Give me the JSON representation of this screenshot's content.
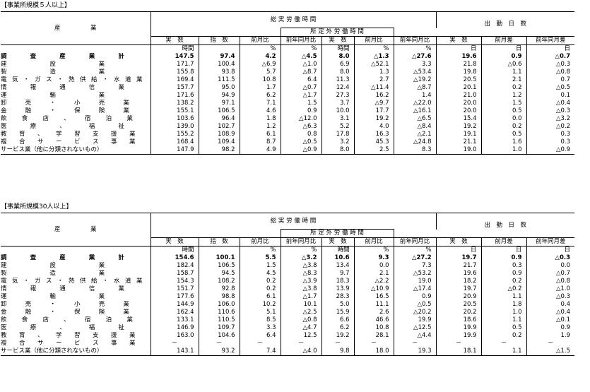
{
  "sections": [
    {
      "caption": "【事業所規模５人以上】",
      "header": {
        "industry": "産　　　　　業",
        "total_hours": "総 実 労 働 時 間",
        "overtime": "所 定 外 労 働 時 間",
        "days": "出　勤　日　数",
        "sub": [
          "実　数",
          "指　数",
          "前月比",
          "前年同月比",
          "実　数",
          "前月比",
          "前年同月比",
          "実　数",
          "前月差",
          "前年同月差"
        ],
        "units": [
          "時間",
          "",
          "%",
          "%",
          "時間",
          "%",
          "%",
          "日",
          "日",
          "日"
        ]
      },
      "rows": [
        {
          "label": "調査産業計",
          "bold": true,
          "values": [
            "147.5",
            "97.4",
            "4.2",
            "△4.5",
            "8.0",
            "△1.3",
            "△27.6",
            "19.6",
            "0.9",
            "△0.7"
          ]
        },
        {
          "label": "建設業",
          "values": [
            "171.7",
            "100.4",
            "△6.9",
            "△1.0",
            "6.9",
            "△52.1",
            "3.3",
            "21.8",
            "△0.6",
            "△0.3"
          ]
        },
        {
          "label": "製造業",
          "values": [
            "155.8",
            "93.8",
            "5.7",
            "△8.7",
            "8.0",
            "1.3",
            "△53.4",
            "19.8",
            "1.1",
            "△0.8"
          ]
        },
        {
          "label": "電気・ガス・熱供給・水道業",
          "values": [
            "169.4",
            "111.5",
            "10.8",
            "6.4",
            "11.3",
            "2.7",
            "△19.2",
            "20.5",
            "2.1",
            "0.7"
          ]
        },
        {
          "label": "情報通信業",
          "values": [
            "157.7",
            "95.0",
            "1.7",
            "△0.7",
            "12.4",
            "△11.4",
            "△8.7",
            "20.1",
            "0.2",
            "△0.5"
          ]
        },
        {
          "label": "運輸業",
          "values": [
            "171.6",
            "94.9",
            "6.2",
            "△1.7",
            "27.3",
            "16.2",
            "1.4",
            "21.0",
            "1.2",
            "0.1"
          ]
        },
        {
          "label": "卸売・小売業",
          "values": [
            "138.2",
            "97.1",
            "7.1",
            "1.5",
            "3.7",
            "△9.7",
            "△22.0",
            "20.0",
            "1.5",
            "△0.4"
          ]
        },
        {
          "label": "金融・保険業",
          "values": [
            "155.1",
            "106.5",
            "4.6",
            "0.9",
            "10.0",
            "17.7",
            "△16.1",
            "20.0",
            "0.5",
            "△0.3"
          ]
        },
        {
          "label": "飲食店、宿泊業",
          "values": [
            "103.6",
            "96.4",
            "1.8",
            "△12.0",
            "3.1",
            "19.2",
            "△6.5",
            "15.4",
            "0.0",
            "△3.2"
          ]
        },
        {
          "label": "医療、福祉",
          "values": [
            "139.0",
            "102.7",
            "1.2",
            "△6.3",
            "5.2",
            "4.0",
            "△8.4",
            "19.2",
            "0.2",
            "△0.2"
          ]
        },
        {
          "label": "教育、学習支援業",
          "values": [
            "155.2",
            "108.9",
            "6.1",
            "0.8",
            "17.8",
            "16.3",
            "△2.1",
            "19.1",
            "0.5",
            "0.3"
          ]
        },
        {
          "label": "複合サービス事業",
          "values": [
            "168.4",
            "109.4",
            "8.7",
            "△0.5",
            "3.2",
            "45.3",
            "△24.8",
            "21.1",
            "1.6",
            "0.3"
          ]
        },
        {
          "label": "サービス業（他に分類されないもの）",
          "plain": true,
          "values": [
            "147.9",
            "98.2",
            "4.9",
            "△0.9",
            "8.0",
            "2.5",
            "8.3",
            "19.0",
            "1.0",
            "△0.9"
          ]
        }
      ]
    },
    {
      "caption": "【事業所規模30人以上】",
      "header": {
        "industry": "産　　　　　業",
        "total_hours": "総 実 労 働 時 間",
        "overtime": "所 定 外 労 働 時 間",
        "days": "出　勤　日　数",
        "sub": [
          "実　数",
          "指　数",
          "前月比",
          "前年同月比",
          "実　数",
          "前月比",
          "前年同月比",
          "実　数",
          "前月差",
          "前年同月差"
        ],
        "units": [
          "時間",
          "",
          "%",
          "%",
          "時間",
          "%",
          "%",
          "日",
          "日",
          "日"
        ]
      },
      "rows": [
        {
          "label": "調査産業計",
          "bold": true,
          "values": [
            "154.6",
            "100.1",
            "5.5",
            "△3.2",
            "10.6",
            "9.3",
            "△27.2",
            "19.7",
            "0.9",
            "△0.3"
          ]
        },
        {
          "label": "建設業",
          "values": [
            "182.4",
            "106.5",
            "1.5",
            "△3.8",
            "13.4",
            "0.0",
            "7.3",
            "21.7",
            "0.3",
            "0.0"
          ]
        },
        {
          "label": "製造業",
          "values": [
            "158.7",
            "94.5",
            "4.5",
            "△8.3",
            "9.7",
            "2.1",
            "△53.2",
            "19.6",
            "0.9",
            "△0.7"
          ]
        },
        {
          "label": "電気・ガス・熱供給・水道業",
          "values": [
            "154.3",
            "108.2",
            "0.2",
            "△3.9",
            "18.3",
            "△2.2",
            "19.0",
            "18.2",
            "0.2",
            "△0.8"
          ]
        },
        {
          "label": "情報通信業",
          "values": [
            "151.7",
            "92.8",
            "0.2",
            "△3.8",
            "13.9",
            "△10.9",
            "△17.4",
            "19.7",
            "△0.2",
            "△1.0"
          ]
        },
        {
          "label": "運輸業",
          "values": [
            "177.6",
            "98.8",
            "6.1",
            "△1.7",
            "28.3",
            "16.5",
            "0.9",
            "20.9",
            "1.1",
            "△0.3"
          ]
        },
        {
          "label": "卸売・小売業",
          "values": [
            "144.9",
            "106.0",
            "10.2",
            "10.1",
            "5.0",
            "11.1",
            "△0.5",
            "20.5",
            "1.8",
            "0.4"
          ]
        },
        {
          "label": "金融・保険業",
          "values": [
            "162.4",
            "110.6",
            "5.1",
            "△2.5",
            "15.9",
            "2.6",
            "△20.2",
            "20.2",
            "1.0",
            "△0.4"
          ]
        },
        {
          "label": "飲食店、宿泊業",
          "values": [
            "133.1",
            "110.5",
            "8.5",
            "△0.8",
            "6.6",
            "46.6",
            "19.9",
            "18.6",
            "1.1",
            "△0.1"
          ]
        },
        {
          "label": "医療、福祉",
          "values": [
            "146.9",
            "109.7",
            "3.3",
            "△4.7",
            "6.2",
            "10.8",
            "△12.5",
            "19.9",
            "0.5",
            "0.9"
          ]
        },
        {
          "label": "教育、学習支援業",
          "values": [
            "163.0",
            "104.6",
            "6.4",
            "12.5",
            "19.2",
            "28.1",
            "△4.4",
            "19.9",
            "0.2",
            "1.9"
          ]
        },
        {
          "label": "複合サービス事業",
          "values": [
            "－",
            "－",
            "－",
            "－",
            "－",
            "－",
            "－",
            "－",
            "－",
            "－"
          ]
        },
        {
          "label": "サービス業（他に分類されないもの）",
          "plain": true,
          "values": [
            "143.1",
            "93.2",
            "7.4",
            "△4.0",
            "9.8",
            "18.0",
            "19.3",
            "18.1",
            "1.1",
            "△1.5"
          ]
        }
      ]
    }
  ]
}
